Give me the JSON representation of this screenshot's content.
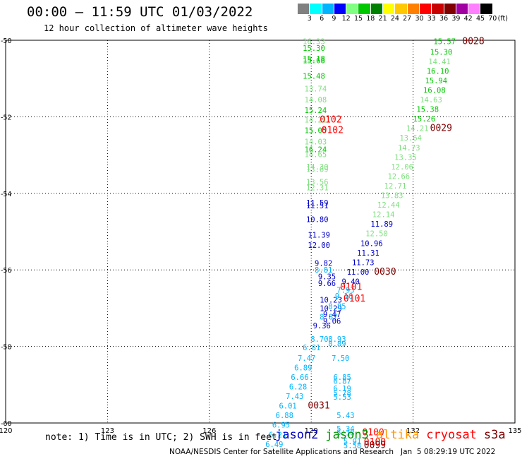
{
  "title": "00:00 – 11:59 UTC 01/03/2022",
  "subtitle": "12 hour collection of altimeter wave heights",
  "colorbar": {
    "ticks": [
      "3",
      "6",
      "9",
      "12",
      "15",
      "18",
      "21",
      "24",
      "27",
      "30",
      "33",
      "36",
      "39",
      "42",
      "45",
      "70"
    ],
    "unit": "(ft)",
    "colors": [
      "#808080",
      "#00ffff",
      "#00b4ff",
      "#0000ff",
      "#80ff80",
      "#00c800",
      "#008000",
      "#ffff00",
      "#ffc800",
      "#ff8000",
      "#ff0000",
      "#c80000",
      "#800000",
      "#a000a0",
      "#ff80ff",
      "#000000"
    ]
  },
  "axes": {
    "lon_ticks": [
      "120",
      "123",
      "126",
      "129",
      "132",
      "135"
    ],
    "lat_ticks": [
      "-50",
      "-52",
      "-54",
      "-56",
      "-58",
      "-60"
    ]
  },
  "note": "note: 1) Time is in UTC; 2) SWH is in feet",
  "legend": [
    {
      "label": "jason2",
      "color": "#0000c8"
    },
    {
      "label": "jason3",
      "color": "#009600"
    },
    {
      "label": "altika",
      "color": "#ff9600"
    },
    {
      "label": "cryosat",
      "color": "#ff0000"
    },
    {
      "label": "s3a",
      "color": "#800000"
    }
  ],
  "credit": "NOAA/NESDIS Center for Satellite Applications and Research   Jan  5 08:29:19 UTC 2022",
  "chart_data": {
    "type": "map",
    "xlabel": "",
    "ylabel": "",
    "xlim": [
      120,
      135
    ],
    "ylim": [
      -60,
      -50
    ],
    "grid": true,
    "observations": [
      {
        "lon": 128.75,
        "lat": -50.03,
        "text": "16.33",
        "color": "#80e080"
      },
      {
        "lon": 128.75,
        "lat": -50.2,
        "text": "15.30",
        "color": "#00c800"
      },
      {
        "lon": 128.75,
        "lat": -50.48,
        "text": "15.18",
        "color": "#00c800"
      },
      {
        "lon": 128.75,
        "lat": -50.53,
        "text": "15.68",
        "color": "#00c800"
      },
      {
        "lon": 128.75,
        "lat": -50.93,
        "text": "15.48",
        "color": "#00c800"
      },
      {
        "lon": 128.8,
        "lat": -51.26,
        "text": "13.74",
        "color": "#80e080"
      },
      {
        "lon": 128.8,
        "lat": -51.55,
        "text": "14.08",
        "color": "#80e080"
      },
      {
        "lon": 128.8,
        "lat": -51.83,
        "text": "15.24",
        "color": "#00c800"
      },
      {
        "lon": 128.8,
        "lat": -52.08,
        "text": "14.21",
        "color": "#80e080"
      },
      {
        "lon": 129.25,
        "lat": -52.08,
        "text": "0102",
        "color": "#ff0000"
      },
      {
        "lon": 128.8,
        "lat": -52.35,
        "text": "15.05",
        "color": "#00c800"
      },
      {
        "lon": 129.3,
        "lat": -52.35,
        "text": "0102",
        "color": "#ff0000"
      },
      {
        "lon": 128.8,
        "lat": -52.65,
        "text": "14.03",
        "color": "#80e080"
      },
      {
        "lon": 128.8,
        "lat": -52.85,
        "text": "16.24",
        "color": "#00c800"
      },
      {
        "lon": 128.8,
        "lat": -52.98,
        "text": "14.65",
        "color": "#80e080"
      },
      {
        "lon": 128.85,
        "lat": -53.3,
        "text": "14.30",
        "color": "#80e080"
      },
      {
        "lon": 128.85,
        "lat": -53.37,
        "text": "13.69",
        "color": "#80e080"
      },
      {
        "lon": 128.85,
        "lat": -53.7,
        "text": "13.56",
        "color": "#80e080"
      },
      {
        "lon": 128.85,
        "lat": -53.85,
        "text": "12.31",
        "color": "#80e080"
      },
      {
        "lon": 128.85,
        "lat": -54.24,
        "text": "11.59",
        "color": "#0000c8"
      },
      {
        "lon": 128.85,
        "lat": -54.32,
        "text": "11.51",
        "color": "#0000c8"
      },
      {
        "lon": 128.85,
        "lat": -54.68,
        "text": "10.80",
        "color": "#0000c8"
      },
      {
        "lon": 128.9,
        "lat": -55.08,
        "text": "11.39",
        "color": "#0000c8"
      },
      {
        "lon": 128.9,
        "lat": -55.35,
        "text": "12.00",
        "color": "#0000c8"
      },
      {
        "lon": 129.1,
        "lat": -55.82,
        "text": "9.82",
        "color": "#0000c8"
      },
      {
        "lon": 129.1,
        "lat": -56.0,
        "text": "8.81",
        "color": "#00b4ff"
      },
      {
        "lon": 129.2,
        "lat": -56.17,
        "text": "9.35",
        "color": "#0000c8"
      },
      {
        "lon": 129.2,
        "lat": -56.35,
        "text": "9.66",
        "color": "#0000c8"
      },
      {
        "lon": 129.25,
        "lat": -56.78,
        "text": "10.23",
        "color": "#0000c8"
      },
      {
        "lon": 129.25,
        "lat": -57.0,
        "text": "10.29",
        "color": "#0000c8"
      },
      {
        "lon": 129.25,
        "lat": -57.22,
        "text": "8.87",
        "color": "#00b4ff"
      },
      {
        "lon": 129.35,
        "lat": -57.16,
        "text": "9.47",
        "color": "#0000c8"
      },
      {
        "lon": 129.35,
        "lat": -57.33,
        "text": "9.06",
        "color": "#0000c8"
      },
      {
        "lon": 129.05,
        "lat": -57.45,
        "text": "9.36",
        "color": "#0000c8"
      },
      {
        "lon": 128.98,
        "lat": -57.8,
        "text": "8.70",
        "color": "#00b4ff"
      },
      {
        "lon": 128.75,
        "lat": -58.03,
        "text": "6.81",
        "color": "#00b4ff"
      },
      {
        "lon": 128.6,
        "lat": -58.3,
        "text": "7.47",
        "color": "#00b4ff"
      },
      {
        "lon": 128.5,
        "lat": -58.55,
        "text": "6.89",
        "color": "#00b4ff"
      },
      {
        "lon": 128.4,
        "lat": -58.8,
        "text": "6.66",
        "color": "#00b4ff"
      },
      {
        "lon": 128.35,
        "lat": -59.05,
        "text": "6.28",
        "color": "#00b4ff"
      },
      {
        "lon": 128.25,
        "lat": -59.3,
        "text": "7.43",
        "color": "#00b4ff"
      },
      {
        "lon": 128.9,
        "lat": -59.55,
        "text": "0031",
        "color": "#800000"
      },
      {
        "lon": 128.05,
        "lat": -59.55,
        "text": "6.01",
        "color": "#00b4ff"
      },
      {
        "lon": 127.95,
        "lat": -59.8,
        "text": "6.88",
        "color": "#00b4ff"
      },
      {
        "lon": 127.85,
        "lat": -60.05,
        "text": "6.95",
        "color": "#00b4ff"
      },
      {
        "lon": 127.75,
        "lat": -60.3,
        "text": "6.21",
        "color": "#00b4ff"
      },
      {
        "lon": 127.65,
        "lat": -60.55,
        "text": "6.49",
        "color": "#00b4ff"
      },
      {
        "lon": 129.5,
        "lat": -57.8,
        "text": "8.93",
        "color": "#00b4ff"
      },
      {
        "lon": 129.5,
        "lat": -57.92,
        "text": "8.89",
        "color": "#00b4ff"
      },
      {
        "lon": 129.6,
        "lat": -58.3,
        "text": "7.50",
        "color": "#00b4ff"
      },
      {
        "lon": 129.65,
        "lat": -58.8,
        "text": "6.85",
        "color": "#00b4ff"
      },
      {
        "lon": 129.65,
        "lat": -58.9,
        "text": "6.87",
        "color": "#00b4ff"
      },
      {
        "lon": 129.65,
        "lat": -59.1,
        "text": "6.19",
        "color": "#00b4ff"
      },
      {
        "lon": 129.65,
        "lat": -59.22,
        "text": "5.78",
        "color": "#00b4ff"
      },
      {
        "lon": 129.65,
        "lat": -59.32,
        "text": "5.53",
        "color": "#00b4ff"
      },
      {
        "lon": 129.75,
        "lat": -59.8,
        "text": "5.43",
        "color": "#00b4ff"
      },
      {
        "lon": 129.75,
        "lat": -60.15,
        "text": "5.34",
        "color": "#00b4ff"
      },
      {
        "lon": 129.75,
        "lat": -60.25,
        "text": "5.18",
        "color": "#00b4ff"
      },
      {
        "lon": 129.95,
        "lat": -60.48,
        "text": "5.91",
        "color": "#00b4ff"
      },
      {
        "lon": 129.95,
        "lat": -60.58,
        "text": "5.58",
        "color": "#00b4ff"
      },
      {
        "lon": 130.5,
        "lat": -60.25,
        "text": "0100",
        "color": "#ff0000"
      },
      {
        "lon": 130.55,
        "lat": -60.5,
        "text": "0100",
        "color": "#ff0000"
      },
      {
        "lon": 130.55,
        "lat": -60.58,
        "text": "0099",
        "color": "#800000"
      },
      {
        "lon": 132.6,
        "lat": -50.03,
        "text": "15.57",
        "color": "#00c800"
      },
      {
        "lon": 133.45,
        "lat": -50.03,
        "text": "0028",
        "color": "#800000"
      },
      {
        "lon": 132.5,
        "lat": -50.3,
        "text": "15.30",
        "color": "#00c800"
      },
      {
        "lon": 132.45,
        "lat": -50.55,
        "text": "14.41",
        "color": "#80e080"
      },
      {
        "lon": 132.4,
        "lat": -50.8,
        "text": "16.10",
        "color": "#00c800"
      },
      {
        "lon": 132.35,
        "lat": -51.05,
        "text": "15.94",
        "color": "#00c800"
      },
      {
        "lon": 132.3,
        "lat": -51.3,
        "text": "16.08",
        "color": "#00c800"
      },
      {
        "lon": 132.2,
        "lat": -51.55,
        "text": "14.63",
        "color": "#80e080"
      },
      {
        "lon": 132.1,
        "lat": -51.8,
        "text": "15.38",
        "color": "#00c800"
      },
      {
        "lon": 132.0,
        "lat": -52.05,
        "text": "15.26",
        "color": "#00c800"
      },
      {
        "lon": 132.5,
        "lat": -52.3,
        "text": "0029",
        "color": "#800000"
      },
      {
        "lon": 131.8,
        "lat": -52.3,
        "text": "14.21",
        "color": "#80e080"
      },
      {
        "lon": 131.6,
        "lat": -52.55,
        "text": "13.64",
        "color": "#80e080"
      },
      {
        "lon": 131.55,
        "lat": -52.8,
        "text": "14.73",
        "color": "#80e080"
      },
      {
        "lon": 131.45,
        "lat": -53.05,
        "text": "13.35",
        "color": "#80e080"
      },
      {
        "lon": 131.35,
        "lat": -53.3,
        "text": "12.06",
        "color": "#80e080"
      },
      {
        "lon": 131.25,
        "lat": -53.55,
        "text": "12.66",
        "color": "#80e080"
      },
      {
        "lon": 131.15,
        "lat": -53.8,
        "text": "12.71",
        "color": "#80e080"
      },
      {
        "lon": 131.05,
        "lat": -54.05,
        "text": "13.83",
        "color": "#80e080"
      },
      {
        "lon": 130.95,
        "lat": -54.3,
        "text": "12.44",
        "color": "#80e080"
      },
      {
        "lon": 130.8,
        "lat": -54.55,
        "text": "12.14",
        "color": "#80e080"
      },
      {
        "lon": 130.75,
        "lat": -54.8,
        "text": "11.89",
        "color": "#0000c8"
      },
      {
        "lon": 130.6,
        "lat": -55.05,
        "text": "12.50",
        "color": "#80e080"
      },
      {
        "lon": 130.45,
        "lat": -55.3,
        "text": "10.96",
        "color": "#0000c8"
      },
      {
        "lon": 130.35,
        "lat": -55.55,
        "text": "11.31",
        "color": "#0000c8"
      },
      {
        "lon": 130.2,
        "lat": -55.8,
        "text": "11.73",
        "color": "#0000c8"
      },
      {
        "lon": 130.05,
        "lat": -56.05,
        "text": "11.00",
        "color": "#0000c8"
      },
      {
        "lon": 130.85,
        "lat": -56.05,
        "text": "0030",
        "color": "#800000"
      },
      {
        "lon": 129.9,
        "lat": -56.3,
        "text": "9.40",
        "color": "#0000c8"
      },
      {
        "lon": 129.85,
        "lat": -56.45,
        "text": "0101",
        "color": "#ff0000"
      },
      {
        "lon": 129.75,
        "lat": -56.52,
        "text": "7.93",
        "color": "#00b4ff"
      },
      {
        "lon": 129.7,
        "lat": -56.68,
        "text": "9.16",
        "color": "#00b4ff"
      },
      {
        "lon": 129.95,
        "lat": -56.75,
        "text": "0101",
        "color": "#ff0000"
      },
      {
        "lon": 129.5,
        "lat": -56.95,
        "text": "8.85",
        "color": "#00b4ff"
      }
    ]
  }
}
